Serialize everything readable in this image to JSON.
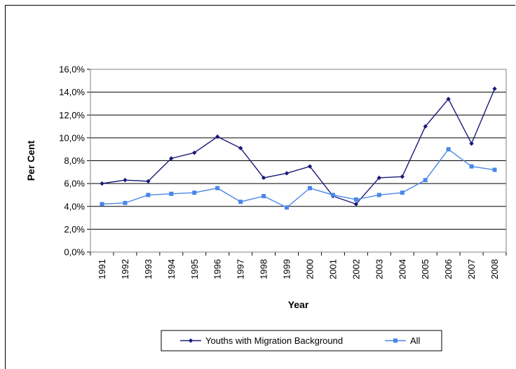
{
  "chart_data": {
    "type": "line",
    "categories": [
      "1991",
      "1992",
      "1993",
      "1994",
      "1995",
      "1996",
      "1997",
      "1998",
      "1999",
      "2000",
      "2001",
      "2002",
      "2003",
      "2004",
      "2005",
      "2006",
      "2007",
      "2008"
    ],
    "xlabel": "Year",
    "ylabel": "Per Cent",
    "ylim": [
      0,
      16
    ],
    "yticks": [
      "0,0%",
      "2,0%",
      "4,0%",
      "6,0%",
      "8,0%",
      "10,0%",
      "12,0%",
      "14,0%",
      "16,0%"
    ],
    "grid": true,
    "legend": "bottom",
    "series": [
      {
        "name": "Youths with Migration Background",
        "color": "#1a1a7a",
        "marker": "diamond",
        "values": [
          6.0,
          6.3,
          6.2,
          8.2,
          8.7,
          10.1,
          9.1,
          6.5,
          6.9,
          7.5,
          4.9,
          4.2,
          6.5,
          6.6,
          11.0,
          13.4,
          9.5,
          14.3
        ]
      },
      {
        "name": "All",
        "color": "#4a86e8",
        "marker": "square",
        "values": [
          4.2,
          4.3,
          5.0,
          5.1,
          5.2,
          5.6,
          4.4,
          4.9,
          3.9,
          5.6,
          5.0,
          4.6,
          5.0,
          5.2,
          6.3,
          9.0,
          7.5,
          7.2
        ]
      }
    ]
  }
}
